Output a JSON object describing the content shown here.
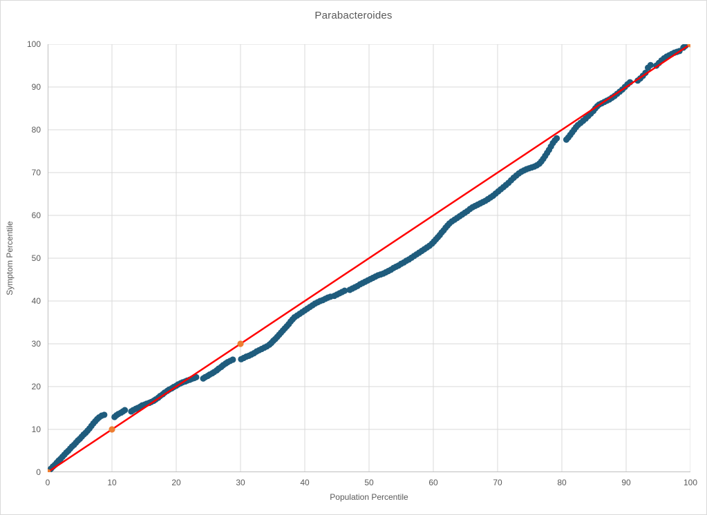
{
  "chart_data": {
    "type": "scatter",
    "title": "Parabacteroides",
    "xlabel": "Population Percentile",
    "ylabel": "Symptom Percentile",
    "xlim": [
      0,
      100
    ],
    "ylim": [
      0,
      100
    ],
    "x_ticks": [
      0,
      10,
      20,
      30,
      40,
      50,
      60,
      70,
      80,
      90,
      100
    ],
    "y_ticks": [
      0,
      10,
      20,
      30,
      40,
      50,
      60,
      70,
      80,
      90,
      100
    ],
    "grid": true,
    "legend": "none",
    "colors": {
      "points": "#1f5c7d",
      "reference_markers": "#ed7d31",
      "identity_line": "#ff0000",
      "gridlines": "#d9d9d9",
      "axis_lines": "#bfbfbf",
      "text": "#595959"
    },
    "series": [
      {
        "name": "symptom-vs-population-percentiles",
        "marker": "circle",
        "points": [
          [
            0.2,
            0.3
          ],
          [
            0.5,
            0.8
          ],
          [
            0.8,
            1.3
          ],
          [
            1.1,
            1.7
          ],
          [
            1.4,
            2.2
          ],
          [
            1.7,
            2.7
          ],
          [
            2.0,
            3.1
          ],
          [
            2.3,
            3.6
          ],
          [
            2.6,
            4.1
          ],
          [
            2.9,
            4.6
          ],
          [
            3.2,
            5.0
          ],
          [
            3.5,
            5.5
          ],
          [
            3.8,
            6.0
          ],
          [
            4.1,
            6.4
          ],
          [
            4.4,
            6.9
          ],
          [
            4.7,
            7.4
          ],
          [
            5.0,
            7.8
          ],
          [
            5.3,
            8.3
          ],
          [
            5.6,
            8.8
          ],
          [
            5.9,
            9.2
          ],
          [
            6.2,
            9.7
          ],
          [
            6.5,
            10.2
          ],
          [
            6.8,
            10.8
          ],
          [
            7.1,
            11.4
          ],
          [
            7.4,
            11.9
          ],
          [
            7.7,
            12.4
          ],
          [
            8.0,
            12.8
          ],
          [
            8.4,
            13.2
          ],
          [
            8.8,
            13.4
          ],
          [
            10.4,
            12.9
          ],
          [
            10.7,
            13.3
          ],
          [
            11.0,
            13.6
          ],
          [
            11.4,
            13.9
          ],
          [
            11.7,
            14.2
          ],
          [
            12.0,
            14.5
          ],
          [
            13.0,
            14.2
          ],
          [
            13.3,
            14.5
          ],
          [
            13.7,
            14.8
          ],
          [
            14.0,
            15.0
          ],
          [
            14.4,
            15.3
          ],
          [
            14.7,
            15.6
          ],
          [
            15.1,
            15.8
          ],
          [
            15.4,
            16.0
          ],
          [
            15.8,
            16.2
          ],
          [
            16.1,
            16.4
          ],
          [
            16.5,
            16.7
          ],
          [
            16.8,
            17.0
          ],
          [
            17.2,
            17.4
          ],
          [
            17.5,
            17.8
          ],
          [
            17.9,
            18.2
          ],
          [
            18.2,
            18.6
          ],
          [
            18.6,
            19.0
          ],
          [
            18.9,
            19.3
          ],
          [
            19.3,
            19.6
          ],
          [
            19.6,
            19.9
          ],
          [
            20.0,
            20.2
          ],
          [
            20.3,
            20.5
          ],
          [
            20.7,
            20.8
          ],
          [
            21.0,
            21.0
          ],
          [
            21.4,
            21.2
          ],
          [
            21.7,
            21.4
          ],
          [
            22.1,
            21.6
          ],
          [
            22.4,
            21.8
          ],
          [
            22.8,
            22.0
          ],
          [
            23.1,
            22.2
          ],
          [
            24.2,
            21.9
          ],
          [
            24.5,
            22.2
          ],
          [
            24.9,
            22.5
          ],
          [
            25.2,
            22.8
          ],
          [
            25.6,
            23.1
          ],
          [
            25.9,
            23.4
          ],
          [
            26.3,
            23.8
          ],
          [
            26.6,
            24.2
          ],
          [
            27.0,
            24.6
          ],
          [
            27.3,
            25.0
          ],
          [
            27.7,
            25.4
          ],
          [
            28.0,
            25.7
          ],
          [
            28.4,
            26.0
          ],
          [
            28.8,
            26.3
          ],
          [
            30.1,
            26.4
          ],
          [
            30.5,
            26.7
          ],
          [
            30.9,
            27.0
          ],
          [
            31.3,
            27.2
          ],
          [
            31.7,
            27.5
          ],
          [
            32.1,
            27.8
          ],
          [
            32.5,
            28.2
          ],
          [
            32.9,
            28.5
          ],
          [
            33.3,
            28.8
          ],
          [
            33.7,
            29.1
          ],
          [
            34.1,
            29.4
          ],
          [
            34.5,
            29.8
          ],
          [
            34.8,
            30.2
          ],
          [
            35.1,
            30.7
          ],
          [
            35.4,
            31.1
          ],
          [
            35.7,
            31.6
          ],
          [
            36.0,
            32.1
          ],
          [
            36.3,
            32.6
          ],
          [
            36.6,
            33.1
          ],
          [
            36.9,
            33.6
          ],
          [
            37.2,
            34.1
          ],
          [
            37.5,
            34.6
          ],
          [
            37.8,
            35.2
          ],
          [
            38.1,
            35.7
          ],
          [
            38.4,
            36.2
          ],
          [
            38.8,
            36.6
          ],
          [
            39.2,
            37.0
          ],
          [
            39.6,
            37.4
          ],
          [
            40.0,
            37.8
          ],
          [
            40.4,
            38.2
          ],
          [
            40.8,
            38.6
          ],
          [
            41.2,
            39.0
          ],
          [
            41.6,
            39.4
          ],
          [
            42.0,
            39.7
          ],
          [
            42.4,
            40.0
          ],
          [
            42.8,
            40.2
          ],
          [
            43.2,
            40.5
          ],
          [
            43.6,
            40.8
          ],
          [
            44.0,
            41.0
          ],
          [
            44.6,
            41.2
          ],
          [
            45.0,
            41.5
          ],
          [
            45.4,
            41.8
          ],
          [
            45.8,
            42.1
          ],
          [
            46.2,
            42.4
          ],
          [
            47.0,
            42.6
          ],
          [
            47.4,
            42.9
          ],
          [
            47.8,
            43.2
          ],
          [
            48.2,
            43.5
          ],
          [
            48.6,
            43.9
          ],
          [
            49.0,
            44.2
          ],
          [
            49.4,
            44.5
          ],
          [
            49.8,
            44.8
          ],
          [
            50.2,
            45.1
          ],
          [
            50.6,
            45.4
          ],
          [
            51.0,
            45.7
          ],
          [
            51.4,
            46.0
          ],
          [
            51.8,
            46.2
          ],
          [
            52.2,
            46.4
          ],
          [
            52.6,
            46.7
          ],
          [
            53.0,
            47.0
          ],
          [
            53.4,
            47.3
          ],
          [
            53.8,
            47.7
          ],
          [
            54.2,
            48.0
          ],
          [
            54.6,
            48.3
          ],
          [
            55.0,
            48.7
          ],
          [
            55.4,
            49.0
          ],
          [
            55.8,
            49.4
          ],
          [
            56.2,
            49.7
          ],
          [
            56.6,
            50.1
          ],
          [
            57.0,
            50.5
          ],
          [
            57.4,
            50.9
          ],
          [
            57.8,
            51.3
          ],
          [
            58.2,
            51.7
          ],
          [
            58.6,
            52.1
          ],
          [
            59.0,
            52.5
          ],
          [
            59.4,
            52.9
          ],
          [
            59.8,
            53.4
          ],
          [
            60.1,
            53.9
          ],
          [
            60.4,
            54.4
          ],
          [
            60.7,
            54.9
          ],
          [
            61.0,
            55.4
          ],
          [
            61.3,
            56.0
          ],
          [
            61.6,
            56.5
          ],
          [
            61.9,
            57.1
          ],
          [
            62.2,
            57.6
          ],
          [
            62.5,
            58.1
          ],
          [
            62.9,
            58.6
          ],
          [
            63.3,
            59.0
          ],
          [
            63.7,
            59.4
          ],
          [
            64.1,
            59.8
          ],
          [
            64.5,
            60.2
          ],
          [
            64.9,
            60.6
          ],
          [
            65.3,
            61.0
          ],
          [
            65.7,
            61.5
          ],
          [
            66.1,
            61.9
          ],
          [
            66.5,
            62.2
          ],
          [
            66.9,
            62.5
          ],
          [
            67.3,
            62.8
          ],
          [
            67.7,
            63.1
          ],
          [
            68.1,
            63.4
          ],
          [
            68.5,
            63.8
          ],
          [
            68.9,
            64.2
          ],
          [
            69.3,
            64.6
          ],
          [
            69.7,
            65.1
          ],
          [
            70.1,
            65.6
          ],
          [
            70.5,
            66.1
          ],
          [
            70.9,
            66.6
          ],
          [
            71.3,
            67.1
          ],
          [
            71.7,
            67.6
          ],
          [
            72.1,
            68.2
          ],
          [
            72.5,
            68.8
          ],
          [
            72.9,
            69.3
          ],
          [
            73.3,
            69.8
          ],
          [
            73.7,
            70.2
          ],
          [
            74.1,
            70.5
          ],
          [
            74.5,
            70.8
          ],
          [
            74.9,
            71.0
          ],
          [
            75.3,
            71.2
          ],
          [
            75.7,
            71.4
          ],
          [
            76.1,
            71.7
          ],
          [
            76.5,
            72.1
          ],
          [
            76.8,
            72.6
          ],
          [
            77.1,
            73.2
          ],
          [
            77.4,
            73.9
          ],
          [
            77.7,
            74.6
          ],
          [
            78.0,
            75.3
          ],
          [
            78.3,
            76.1
          ],
          [
            78.6,
            76.9
          ],
          [
            78.9,
            77.5
          ],
          [
            79.2,
            78.0
          ],
          [
            80.7,
            77.7
          ],
          [
            81.0,
            78.2
          ],
          [
            81.3,
            78.8
          ],
          [
            81.6,
            79.4
          ],
          [
            81.9,
            80.0
          ],
          [
            82.2,
            80.6
          ],
          [
            82.5,
            81.1
          ],
          [
            82.9,
            81.6
          ],
          [
            83.3,
            82.1
          ],
          [
            83.7,
            82.6
          ],
          [
            84.1,
            83.2
          ],
          [
            84.5,
            83.8
          ],
          [
            84.9,
            84.4
          ],
          [
            85.2,
            85.0
          ],
          [
            85.5,
            85.5
          ],
          [
            85.8,
            85.9
          ],
          [
            86.2,
            86.2
          ],
          [
            86.6,
            86.5
          ],
          [
            87.0,
            86.8
          ],
          [
            87.4,
            87.1
          ],
          [
            87.8,
            87.5
          ],
          [
            88.2,
            87.9
          ],
          [
            88.6,
            88.4
          ],
          [
            89.0,
            88.9
          ],
          [
            89.4,
            89.4
          ],
          [
            89.8,
            90.0
          ],
          [
            90.2,
            90.6
          ],
          [
            90.6,
            91.1
          ],
          [
            91.8,
            91.5
          ],
          [
            92.2,
            92.0
          ],
          [
            92.6,
            92.6
          ],
          [
            93.0,
            93.3
          ],
          [
            93.4,
            94.5
          ],
          [
            93.8,
            95.1
          ],
          [
            94.7,
            95.0
          ],
          [
            95.1,
            95.6
          ],
          [
            95.5,
            96.2
          ],
          [
            95.9,
            96.7
          ],
          [
            96.3,
            97.1
          ],
          [
            96.7,
            97.4
          ],
          [
            97.1,
            97.7
          ],
          [
            97.5,
            98.0
          ],
          [
            97.9,
            98.2
          ],
          [
            98.3,
            98.4
          ],
          [
            98.9,
            99.2
          ],
          [
            99.2,
            99.6
          ],
          [
            99.5,
            100.0
          ]
        ]
      },
      {
        "name": "reference-percentile-markers",
        "marker": "circle",
        "points": [
          [
            0,
            0
          ],
          [
            10,
            10
          ],
          [
            30,
            30
          ],
          [
            100,
            100
          ]
        ]
      },
      {
        "name": "identity-line",
        "marker": "line",
        "points": [
          [
            0,
            0
          ],
          [
            100,
            100
          ]
        ]
      }
    ]
  }
}
